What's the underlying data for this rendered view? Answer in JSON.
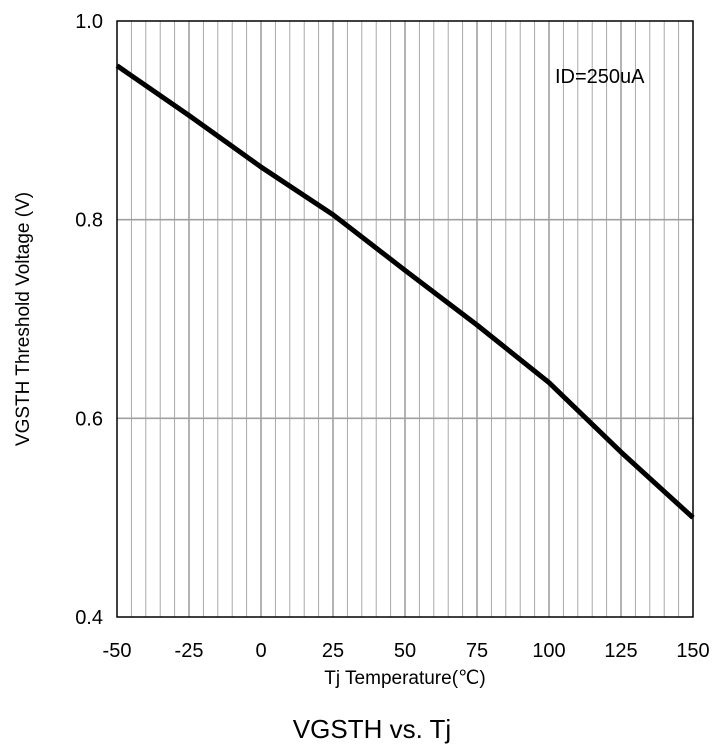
{
  "chart_data": {
    "type": "line",
    "title": "VGSTH vs. Tj",
    "xlabel": "Tj Temperature(℃)",
    "ylabel": "VGSTH Threshold Voltage (V)",
    "xlim": [
      -50,
      150
    ],
    "ylim": [
      0.4,
      1.0
    ],
    "x_ticks": [
      -50,
      -25,
      0,
      25,
      50,
      75,
      100,
      125,
      150
    ],
    "x_tick_labels": [
      "-50",
      "-25",
      "0",
      "25",
      "50",
      "75",
      "100",
      "125",
      "150"
    ],
    "y_ticks": [
      0.4,
      0.6,
      0.8,
      1.0
    ],
    "y_tick_labels": [
      "0.4",
      "0.6",
      "0.8",
      "1.0"
    ],
    "minor_x_step": 5,
    "grid": true,
    "annotation": "ID=250uA",
    "line_color": "#000000",
    "grid_color": "#a0a0a0",
    "series": [
      {
        "x": [
          -50,
          -25,
          0,
          25,
          50,
          75,
          100,
          125,
          150
        ],
        "y": [
          0.955,
          0.905,
          0.853,
          0.805,
          0.749,
          0.694,
          0.636,
          0.566,
          0.5
        ]
      }
    ]
  }
}
